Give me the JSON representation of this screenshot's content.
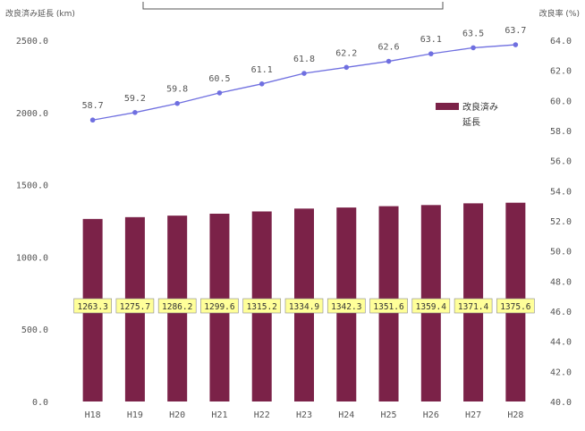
{
  "chart_data": {
    "type": "bar",
    "categories": [
      "H18",
      "H19",
      "H20",
      "H21",
      "H22",
      "H23",
      "H24",
      "H25",
      "H26",
      "H27",
      "H28"
    ],
    "series": [
      {
        "name": "改良済み延長",
        "type": "bar",
        "axis": "left",
        "values": [
          1263.3,
          1275.7,
          1286.2,
          1299.6,
          1315.2,
          1334.9,
          1342.3,
          1351.6,
          1359.4,
          1371.4,
          1375.6
        ]
      },
      {
        "type": "line",
        "axis": "right",
        "values": [
          58.7,
          59.2,
          59.8,
          60.5,
          61.1,
          61.8,
          62.2,
          62.6,
          63.1,
          63.5,
          63.7
        ]
      }
    ],
    "ylabel_left": "改良済み延長 (km)",
    "ylabel_right": "改良率 (%)",
    "ylim_left": [
      0,
      2500
    ],
    "ylim_right": [
      40,
      64
    ],
    "yticks_left": [
      "0.0",
      "500.0",
      "1000.0",
      "1500.0",
      "2000.0",
      "2500.0"
    ],
    "yticks_right": [
      "40.0",
      "42.0",
      "44.0",
      "46.0",
      "48.0",
      "50.0",
      "52.0",
      "54.0",
      "56.0",
      "58.0",
      "60.0",
      "62.0",
      "64.0"
    ],
    "legend": {
      "position": "top-right",
      "label_line1": "改良済み",
      "label_line2": "延長"
    },
    "bar_color": "#7b2248",
    "line_color": "#6f6fe0",
    "label_box_color": "#ffff99",
    "grid": false
  }
}
